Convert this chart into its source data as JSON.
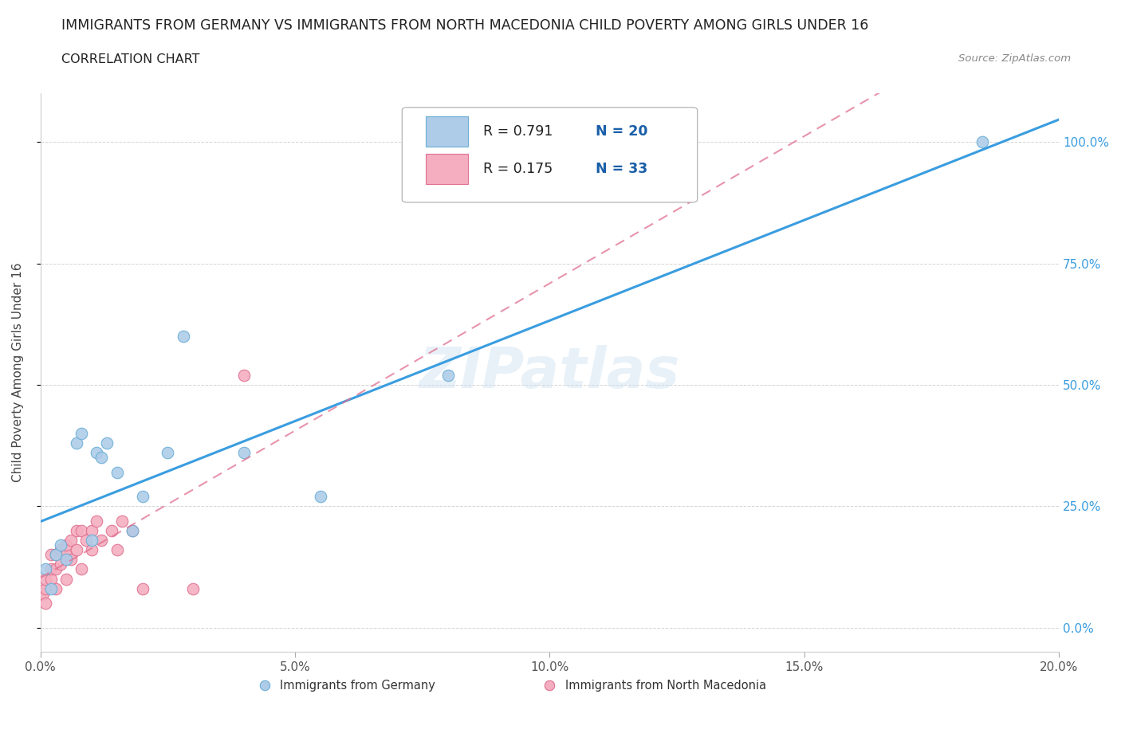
{
  "title": "IMMIGRANTS FROM GERMANY VS IMMIGRANTS FROM NORTH MACEDONIA CHILD POVERTY AMONG GIRLS UNDER 16",
  "subtitle": "CORRELATION CHART",
  "source": "Source: ZipAtlas.com",
  "ylabel": "Child Poverty Among Girls Under 16",
  "xlim": [
    0.0,
    0.2
  ],
  "ylim": [
    -0.05,
    1.1
  ],
  "xticks": [
    0.0,
    0.05,
    0.1,
    0.15,
    0.2
  ],
  "xticklabels": [
    "0.0%",
    "5.0%",
    "10.0%",
    "15.0%",
    "20.0%"
  ],
  "yticks": [
    0.0,
    0.25,
    0.5,
    0.75,
    1.0
  ],
  "yticklabels": [
    "0.0%",
    "25.0%",
    "50.0%",
    "75.0%",
    "100.0%"
  ],
  "germany_color": "#aecce8",
  "germany_edge_color": "#6aaed6",
  "macedonia_color": "#f4aec0",
  "macedonia_edge_color": "#e07090",
  "germany_line_color": "#3a9de0",
  "macedonia_line_color": "#e07090",
  "R_germany": 0.791,
  "N_germany": 20,
  "R_macedonia": 0.175,
  "N_macedonia": 33,
  "legend_label_germany": "Immigrants from Germany",
  "legend_label_macedonia": "Immigrants from North Macedonia",
  "watermark": "ZIPatlas",
  "germany_x": [
    0.001,
    0.002,
    0.003,
    0.004,
    0.005,
    0.007,
    0.008,
    0.01,
    0.011,
    0.012,
    0.013,
    0.015,
    0.018,
    0.02,
    0.025,
    0.028,
    0.04,
    0.055,
    0.08,
    0.185
  ],
  "germany_y": [
    0.12,
    0.08,
    0.15,
    0.17,
    0.14,
    0.38,
    0.4,
    0.18,
    0.36,
    0.35,
    0.38,
    0.32,
    0.2,
    0.27,
    0.36,
    0.6,
    0.36,
    0.27,
    0.52,
    1.0
  ],
  "macedonia_x": [
    0.0005,
    0.001,
    0.001,
    0.001,
    0.002,
    0.002,
    0.002,
    0.003,
    0.003,
    0.003,
    0.004,
    0.004,
    0.005,
    0.005,
    0.005,
    0.006,
    0.006,
    0.007,
    0.007,
    0.008,
    0.008,
    0.009,
    0.01,
    0.01,
    0.011,
    0.012,
    0.014,
    0.015,
    0.016,
    0.018,
    0.02,
    0.03,
    0.04
  ],
  "macedonia_y": [
    0.07,
    0.05,
    0.08,
    0.1,
    0.1,
    0.12,
    0.15,
    0.08,
    0.12,
    0.15,
    0.13,
    0.16,
    0.1,
    0.15,
    0.17,
    0.14,
    0.18,
    0.16,
    0.2,
    0.12,
    0.2,
    0.18,
    0.16,
    0.2,
    0.22,
    0.18,
    0.2,
    0.16,
    0.22,
    0.2,
    0.08,
    0.08,
    0.52
  ],
  "background_color": "#ffffff",
  "grid_color": "#d0d0d0",
  "legend_R_color": "#1a5fa8",
  "legend_N_color": "#1a5fa8"
}
